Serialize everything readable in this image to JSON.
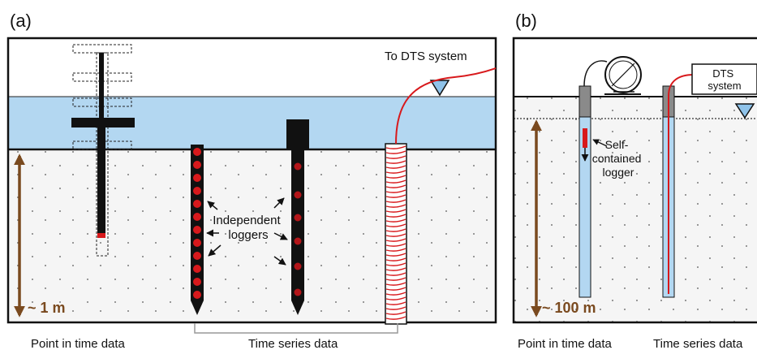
{
  "panel_a": {
    "label": "(a)",
    "to_dts": "To DTS system",
    "independent_loggers": [
      "Independent",
      "loggers"
    ],
    "scale": "~ 1 m",
    "caption_point": "Point in time data",
    "caption_series": "Time series data"
  },
  "panel_b": {
    "label": "(b)",
    "dts_system": [
      "DTS",
      "system"
    ],
    "self_contained_logger": [
      "Self-",
      "contained",
      "logger"
    ],
    "scale": "~ 100 m",
    "caption_point": "Point in time data",
    "caption_series": "Time series data"
  },
  "colors": {
    "water": "#b3d7f1",
    "sediment": "#f4f4f4",
    "probe": "#111111",
    "logger": "#d8191c",
    "scale_arrow": "#7a4a1f",
    "well": "#b3d7f1",
    "casing": "#8a8a8a"
  },
  "icons": [
    "water-table-icon",
    "cable-reel-icon"
  ]
}
